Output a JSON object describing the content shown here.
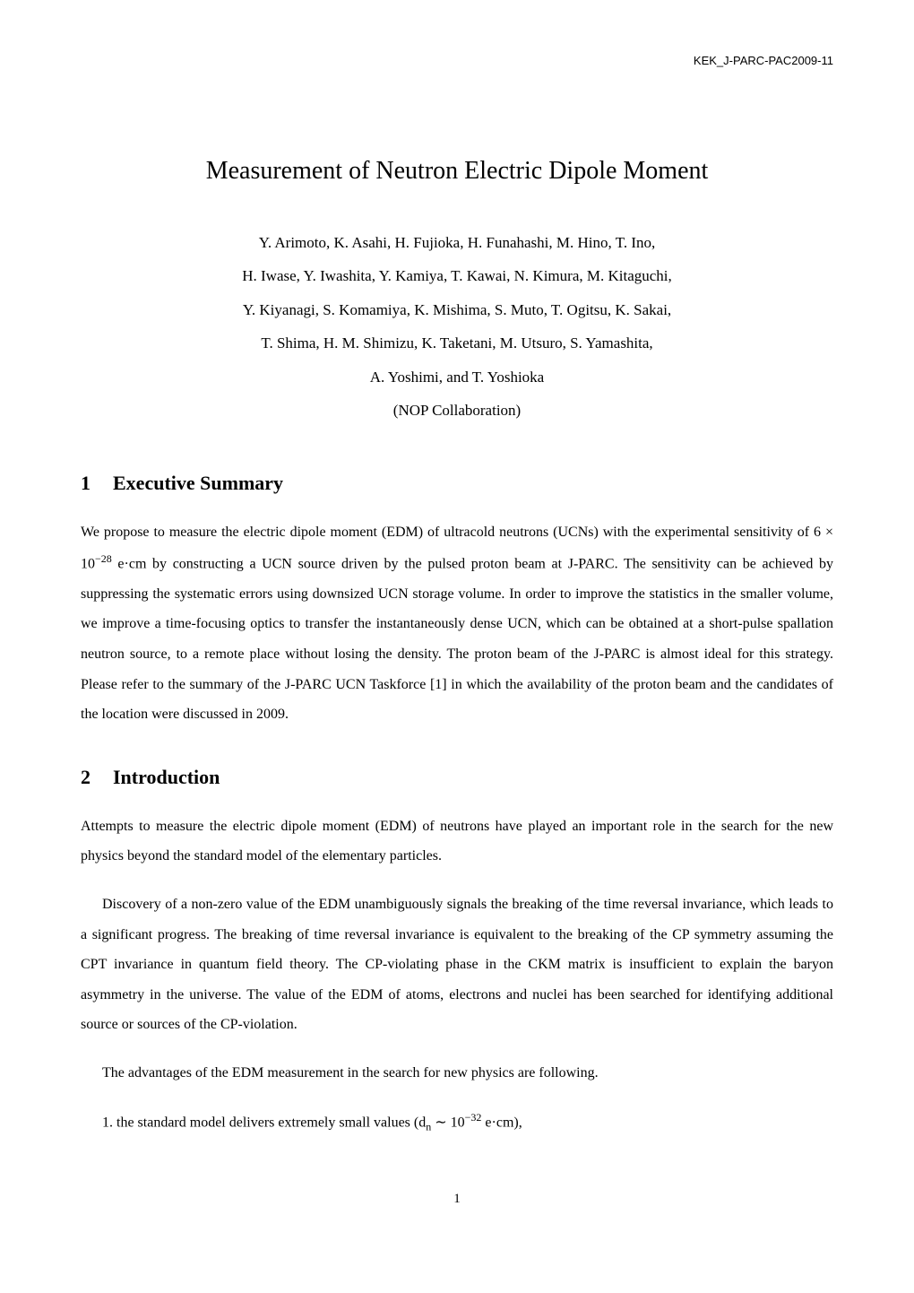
{
  "header": {
    "doc_id": "KEK_J-PARC-PAC2009-11"
  },
  "title": "Measurement of Neutron Electric Dipole Moment",
  "authors": {
    "line1": "Y. Arimoto, K. Asahi, H. Fujioka, H. Funahashi, M. Hino, T. Ino,",
    "line2": "H. Iwase, Y. Iwashita, Y. Kamiya, T. Kawai, N. Kimura, M. Kitaguchi,",
    "line3": "Y. Kiyanagi, S. Komamiya, K. Mishima, S. Muto, T. Ogitsu, K. Sakai,",
    "line4": "T. Shima, H. M. Shimizu, K. Taketani, M. Utsuro, S. Yamashita,",
    "line5": "A. Yoshimi, and T. Yoshioka",
    "collaboration": "(NOP Collaboration)"
  },
  "sections": {
    "s1": {
      "num": "1",
      "title": "Executive Summary",
      "p1_a": "We propose to measure the electric dipole moment (EDM) of ultracold neutrons (UCNs) with the experimental sensitivity of 6 × 10",
      "p1_exp": "−28",
      "p1_b": " e·cm by constructing a UCN source driven by the pulsed proton beam at J-PARC. The sensitivity can be achieved by suppressing the systematic errors using downsized UCN storage volume. In order to improve the statistics in the smaller volume, we improve a time-focusing optics to transfer the instantaneously dense UCN, which can be obtained at a short-pulse spallation neutron source, to a remote place without losing the density. The proton beam of the J-PARC is almost ideal for this strategy. Please refer to the summary of the J-PARC UCN Taskforce [1] in which the availability of the proton beam and the candidates of the location were discussed in 2009."
    },
    "s2": {
      "num": "2",
      "title": "Introduction",
      "p1": "Attempts to measure the electric dipole moment (EDM) of neutrons have played an important role in the search for the new physics beyond the standard model of the elementary particles.",
      "p2": "Discovery of a non-zero value of the EDM unambiguously signals the breaking of the time reversal invariance, which leads to a significant progress. The breaking of time reversal invariance is equivalent to the breaking of the CP symmetry assuming the CPT invariance in quantum field theory. The CP-violating phase in the CKM matrix is insufficient to explain the baryon asymmetry in the universe. The value of the EDM of atoms, electrons and nuclei has been searched for identifying additional source or sources of the CP-violation.",
      "p3": "The advantages of the EDM measurement in the search for new physics are following.",
      "item1_a": "1. the standard model delivers extremely small values (d",
      "item1_sub": "n",
      "item1_b": " ∼ 10",
      "item1_exp": "−32",
      "item1_c": " e·cm),"
    }
  },
  "page_number": "1"
}
